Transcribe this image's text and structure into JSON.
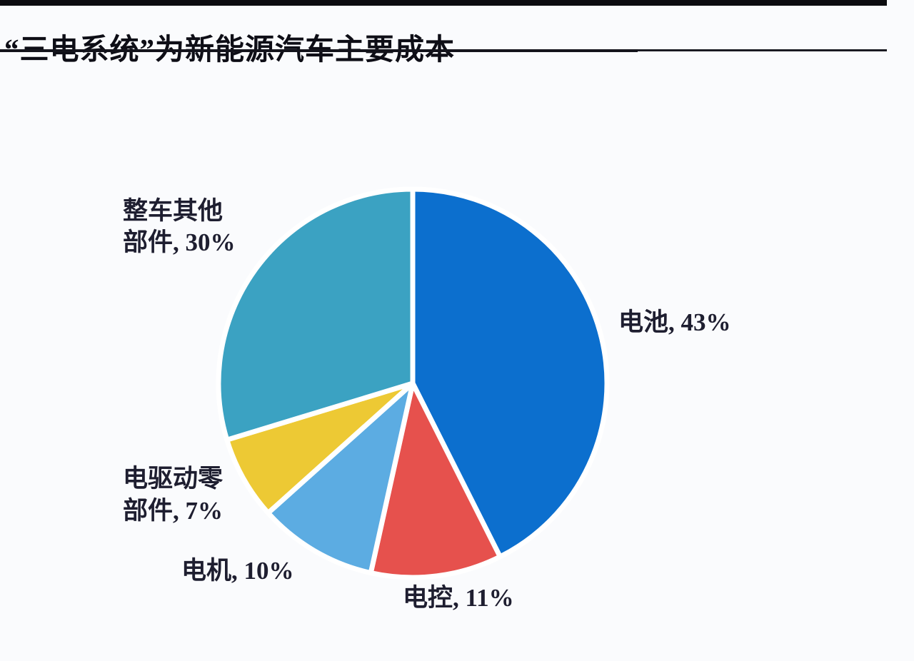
{
  "page": {
    "background_color": "#FAFBFD",
    "top_bar_color": "#0C0C10"
  },
  "header": {
    "title": "“三电系统”为新能源汽车主要成本"
  },
  "chart_data": {
    "type": "pie",
    "title": "“三电系统”为新能源汽车主要成本",
    "unit": "%",
    "start_angle": "top",
    "direction": "clockwise",
    "legend_position": "none",
    "slice_gap_color": "#FFFFFF",
    "segments": [
      {
        "key": "battery",
        "label": "电池",
        "value": 43,
        "color": "#0C6FCE"
      },
      {
        "key": "control",
        "label": "电控",
        "value": 11,
        "color": "#E6514D"
      },
      {
        "key": "motor",
        "label": "电机",
        "value": 10,
        "color": "#5CACE2"
      },
      {
        "key": "edrive",
        "label": "电驱动零部件",
        "value": 7,
        "color": "#EDC934"
      },
      {
        "key": "other",
        "label": "整车其他部件",
        "value": 30,
        "color": "#3BA2C2"
      }
    ],
    "data_labels": [
      "电池, 43%",
      "电控, 11%",
      "电机, 10%",
      "电驱动零部件, 7%",
      "整车其他部件, 30%"
    ]
  },
  "labels": {
    "battery": {
      "line1": "电池, 43%"
    },
    "control": {
      "line1": "电控, 11%"
    },
    "motor": {
      "line1": "电机, 10%"
    },
    "edrive": {
      "line1": "电驱动零",
      "line2": "部件, 7%"
    },
    "other": {
      "line1": "整车其他",
      "line2": "部件, 30%"
    }
  }
}
